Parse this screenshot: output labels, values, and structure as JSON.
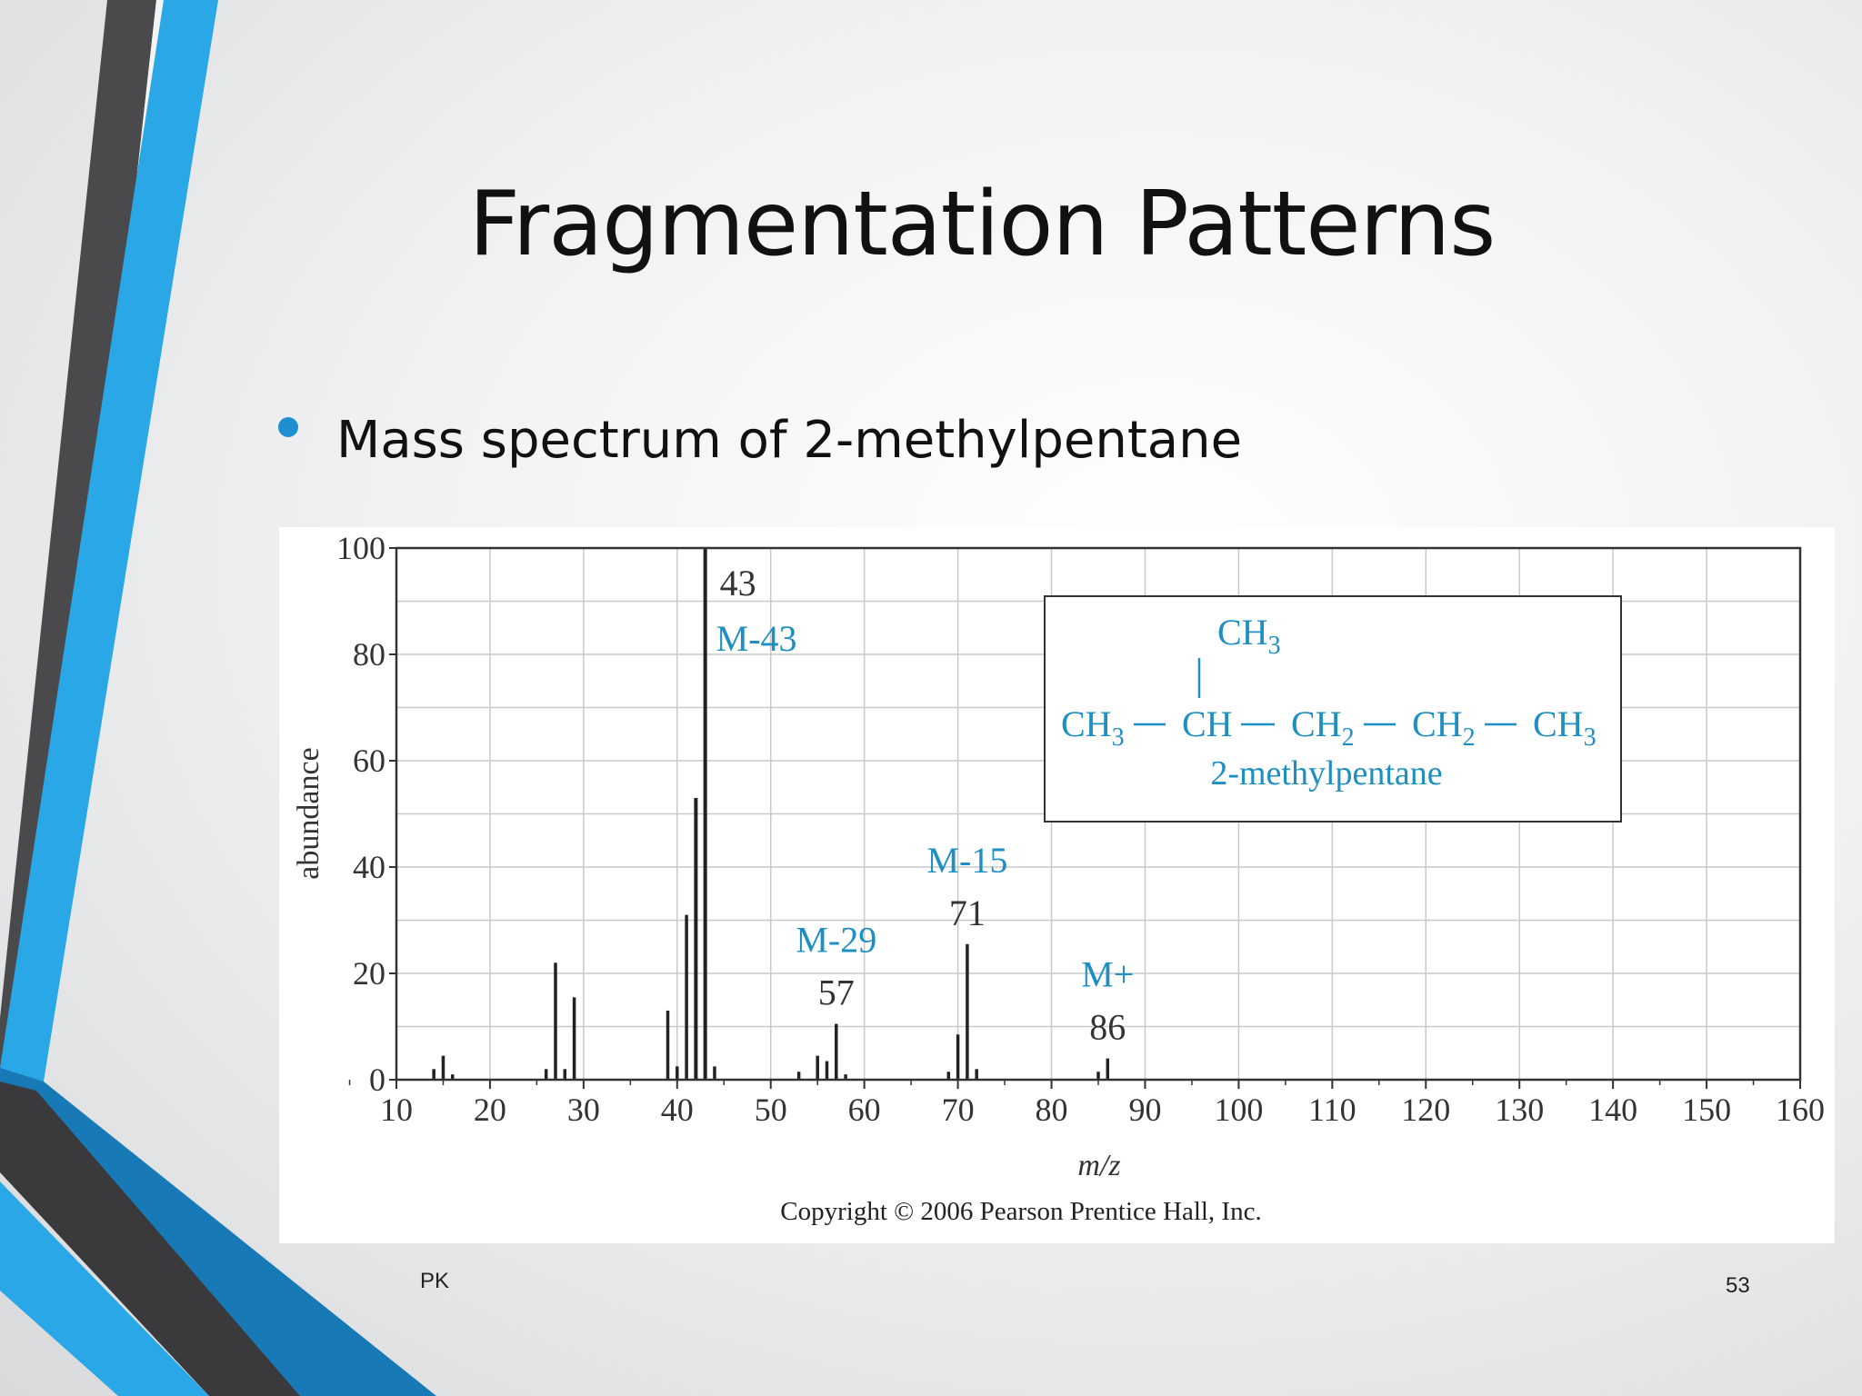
{
  "slide": {
    "title": "Fragmentation Patterns",
    "bullet": "Mass spectrum of 2-methylpentane",
    "footer_left": "PK",
    "page_number": "53",
    "colors": {
      "accent_blue": "#2aa7e6",
      "dark_gray": "#3a3a3c",
      "label_blue": "#1e8fc2"
    }
  },
  "chart_data": {
    "type": "bar",
    "ylabel": "abundance",
    "xlabel": "m/z",
    "xlim": [
      10,
      160
    ],
    "ylim": [
      0,
      100
    ],
    "x_ticks": [
      10,
      20,
      30,
      40,
      50,
      60,
      70,
      80,
      90,
      100,
      110,
      120,
      130,
      140,
      150,
      160
    ],
    "y_ticks": [
      0,
      20,
      40,
      60,
      80,
      100
    ],
    "grid": true,
    "peaks": [
      {
        "x": 14,
        "y": 2
      },
      {
        "x": 15,
        "y": 4.5
      },
      {
        "x": 16,
        "y": 1
      },
      {
        "x": 26,
        "y": 2
      },
      {
        "x": 27,
        "y": 22
      },
      {
        "x": 28,
        "y": 2
      },
      {
        "x": 29,
        "y": 15.5
      },
      {
        "x": 39,
        "y": 13
      },
      {
        "x": 40,
        "y": 2.5
      },
      {
        "x": 41,
        "y": 31
      },
      {
        "x": 42,
        "y": 53
      },
      {
        "x": 43,
        "y": 100
      },
      {
        "x": 44,
        "y": 2.5
      },
      {
        "x": 53,
        "y": 1.5
      },
      {
        "x": 55,
        "y": 4.5
      },
      {
        "x": 56,
        "y": 3.5
      },
      {
        "x": 57,
        "y": 10.5
      },
      {
        "x": 58,
        "y": 1
      },
      {
        "x": 69,
        "y": 1.5
      },
      {
        "x": 70,
        "y": 8.5
      },
      {
        "x": 71,
        "y": 25.5
      },
      {
        "x": 72,
        "y": 2
      },
      {
        "x": 85,
        "y": 1.5
      },
      {
        "x": 86,
        "y": 4
      }
    ],
    "annotations": [
      {
        "mz": "43",
        "fragment": "M-43"
      },
      {
        "mz": "57",
        "fragment": "M-29"
      },
      {
        "mz": "71",
        "fragment": "M-15"
      },
      {
        "mz": "86",
        "fragment": "M+"
      }
    ],
    "structure": {
      "top": "CH",
      "top_sub": "3",
      "chain": [
        {
          "t": "CH",
          "s": "3"
        },
        {
          "t": "CH",
          "s": ""
        },
        {
          "t": "CH",
          "s": "2"
        },
        {
          "t": "CH",
          "s": "2"
        },
        {
          "t": "CH",
          "s": "3"
        }
      ],
      "name": "2-methylpentane"
    },
    "copyright": "Copyright © 2006 Pearson Prentice Hall, Inc."
  }
}
